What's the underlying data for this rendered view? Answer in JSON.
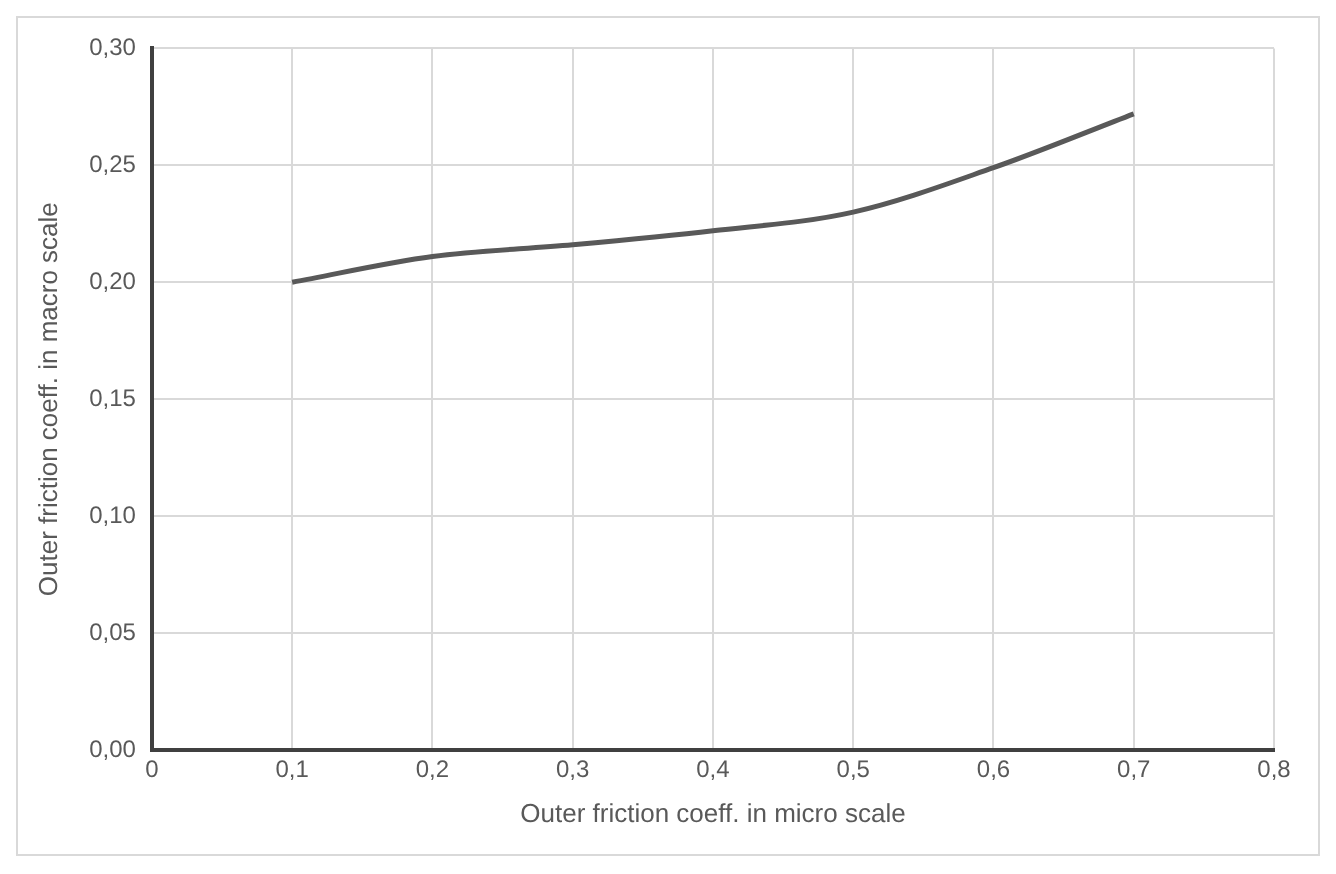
{
  "chart_data": {
    "type": "line",
    "xlabel": "Outer friction coeff. in micro scale",
    "ylabel": "Outer friction coeff. in macro scale",
    "x": [
      0.1,
      0.2,
      0.3,
      0.4,
      0.5,
      0.6,
      0.7
    ],
    "series": [
      {
        "color": "#595959",
        "values": [
          0.2,
          0.211,
          0.216,
          0.222,
          0.23,
          0.249,
          0.272
        ]
      }
    ],
    "xlim": [
      0,
      0.8
    ],
    "xticks": [
      {
        "value": 0,
        "label": "0"
      },
      {
        "value": 0.1,
        "label": "0,1"
      },
      {
        "value": 0.2,
        "label": "0,2"
      },
      {
        "value": 0.3,
        "label": "0,3"
      },
      {
        "value": 0.4,
        "label": "0,4"
      },
      {
        "value": 0.5,
        "label": "0,5"
      },
      {
        "value": 0.6,
        "label": "0,6"
      },
      {
        "value": 0.7,
        "label": "0,7"
      },
      {
        "value": 0.8,
        "label": "0,8"
      }
    ],
    "ylim": [
      0,
      0.3
    ],
    "yticks": [
      {
        "value": 0,
        "label": "0,00"
      },
      {
        "value": 0.05,
        "label": "0,05"
      },
      {
        "value": 0.1,
        "label": "0,10"
      },
      {
        "value": 0.15,
        "label": "0,15"
      },
      {
        "value": 0.2,
        "label": "0,20"
      },
      {
        "value": 0.25,
        "label": "0,25"
      },
      {
        "value": 0.3,
        "label": "0,30"
      }
    ],
    "grid": true,
    "legend": false,
    "marker": "none",
    "line_style": "solid"
  }
}
